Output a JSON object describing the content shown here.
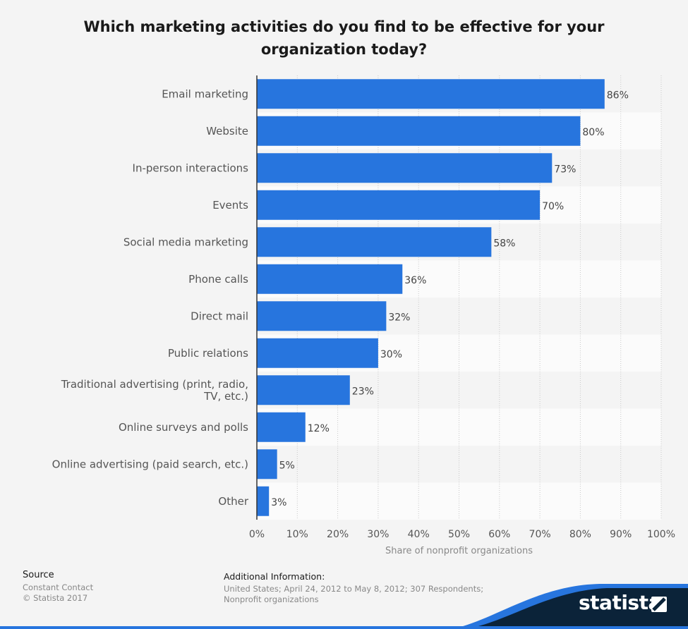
{
  "chart_data": {
    "type": "bar",
    "orientation": "horizontal",
    "title": [
      "Which marketing activities do you find to be effective for your",
      "organization today?"
    ],
    "categories": [
      [
        "Email marketing"
      ],
      [
        "Website"
      ],
      [
        "In-person interactions"
      ],
      [
        "Events"
      ],
      [
        "Social media marketing"
      ],
      [
        "Phone calls"
      ],
      [
        "Direct mail"
      ],
      [
        "Public relations"
      ],
      [
        "Traditional advertising (print, radio,",
        "TV, etc.)"
      ],
      [
        "Online surveys and polls"
      ],
      [
        "Online advertising (paid search, etc.)"
      ],
      [
        "Other"
      ]
    ],
    "values": [
      86,
      80,
      73,
      70,
      58,
      36,
      32,
      30,
      23,
      12,
      5,
      3
    ],
    "value_labels": [
      "86%",
      "80%",
      "73%",
      "70%",
      "58%",
      "36%",
      "32%",
      "30%",
      "23%",
      "12%",
      "5%",
      "3%"
    ],
    "xlim": [
      0,
      100
    ],
    "x_ticks": [
      0,
      10,
      20,
      30,
      40,
      50,
      60,
      70,
      80,
      90,
      100
    ],
    "x_tick_labels": [
      "0%",
      "10%",
      "20%",
      "30%",
      "40%",
      "50%",
      "60%",
      "70%",
      "80%",
      "90%",
      "100%"
    ],
    "xlabel": "Share of nonprofit organizations",
    "ylabel": "",
    "grid": true,
    "bar_color": "#2775de"
  },
  "footer": {
    "source_heading": "Source",
    "source_lines": [
      "Constant Contact",
      "© Statista 2017"
    ],
    "additional_heading": "Additional Information:",
    "additional_lines": [
      "United States; April 24, 2012 to May 8, 2012; 307 Respondents;",
      "Nonprofit organizations"
    ]
  },
  "brand": {
    "name": "statista",
    "dark_color": "#0b2339",
    "accent_color": "#2775de"
  }
}
